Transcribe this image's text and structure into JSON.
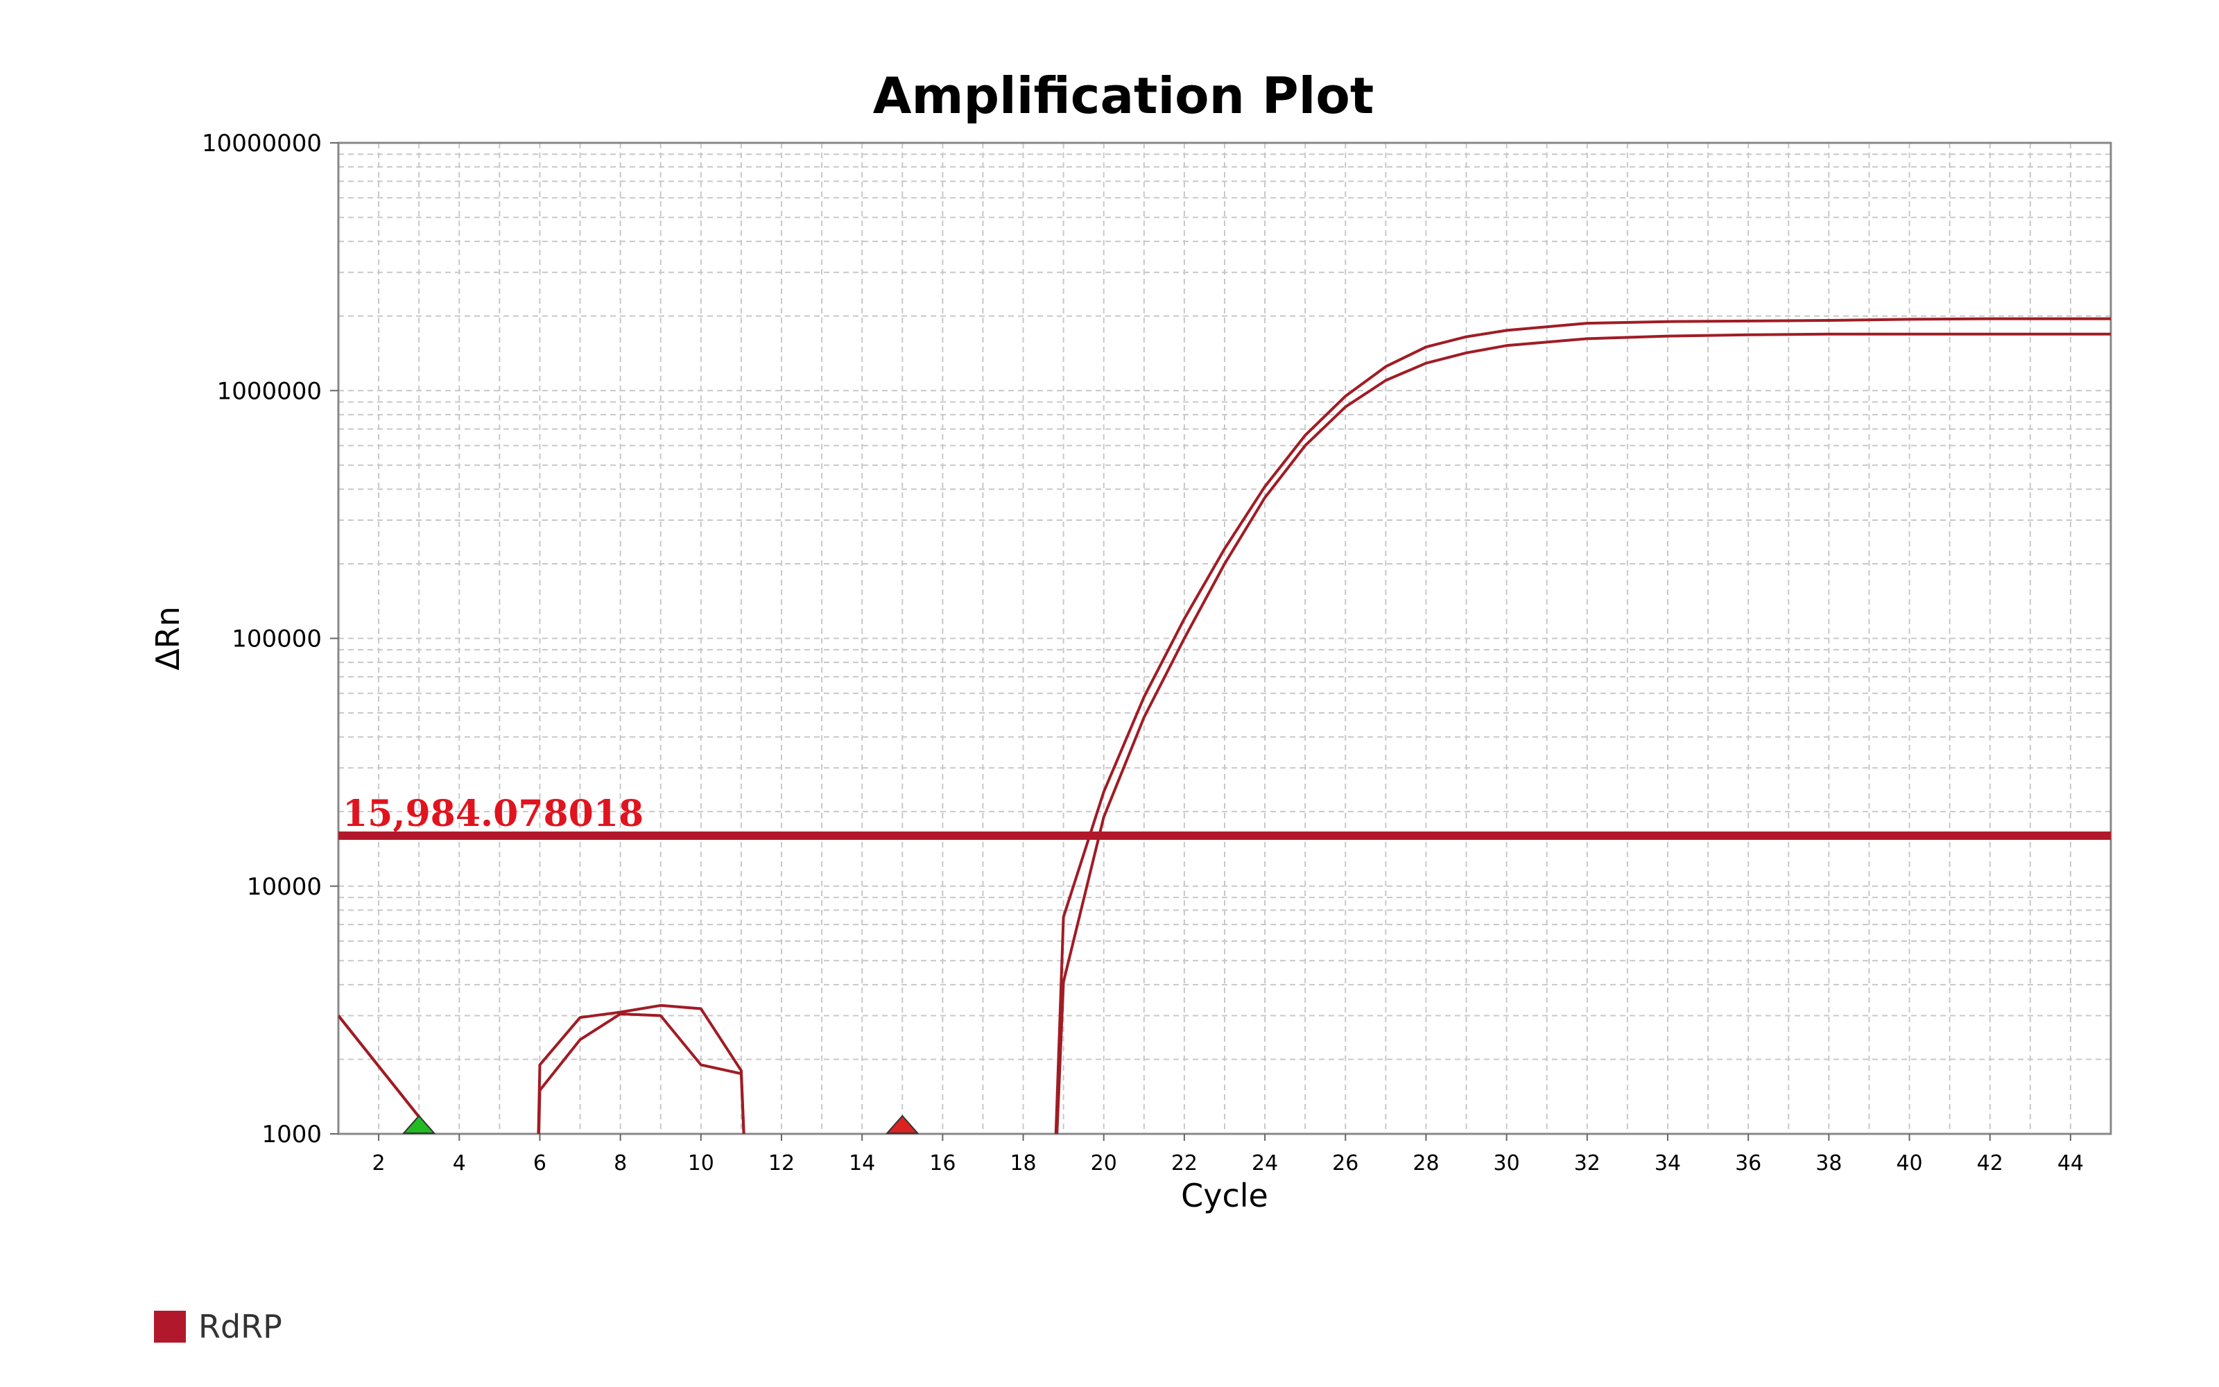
{
  "chart_data": {
    "type": "line",
    "title": "Amplification Plot",
    "xlabel": "Cycle",
    "ylabel": "ΔRn",
    "xlim": [
      1,
      45
    ],
    "ylim": [
      1000,
      10000000
    ],
    "yscale": "log",
    "grid": true,
    "x_ticks": [
      "2",
      "4",
      "6",
      "8",
      "10",
      "12",
      "14",
      "16",
      "18",
      "20",
      "22",
      "24",
      "26",
      "28",
      "30",
      "32",
      "34",
      "36",
      "38",
      "40",
      "42",
      "44"
    ],
    "y_ticks": [
      "1000",
      "10000",
      "100000",
      "1000000",
      "10000000"
    ],
    "threshold": {
      "value": 15984.078018,
      "label": "15,984.078018",
      "color": "#b2182b"
    },
    "baseline_markers": [
      {
        "name": "baseline-start",
        "x": 3,
        "color": "#22bb22"
      },
      {
        "name": "baseline-end",
        "x": 15,
        "color": "#dd2222"
      }
    ],
    "legend_position": "bottom-left",
    "series": [
      {
        "name": "RdRP",
        "color": "#a01c24",
        "x": [
          1,
          5.9,
          6,
          7,
          8,
          9,
          10,
          11,
          11.2,
          18.7,
          19,
          20,
          21,
          22,
          23,
          24,
          25,
          26,
          27,
          28,
          29,
          30,
          32,
          34,
          36,
          38,
          40,
          42,
          45
        ],
        "values": [
          3000,
          300,
          1900,
          2950,
          3100,
          3300,
          3200,
          1800,
          300,
          300,
          7500,
          24000,
          58000,
          120000,
          230000,
          410000,
          660000,
          950000,
          1250000,
          1500000,
          1650000,
          1750000,
          1870000,
          1900000,
          1910000,
          1920000,
          1940000,
          1950000,
          1950000
        ]
      },
      {
        "name": "RdRP",
        "color": "#a01c24",
        "x": [
          1,
          5.9,
          6,
          7,
          8,
          9,
          10,
          11,
          11.2,
          18.7,
          19,
          20,
          21,
          22,
          23,
          24,
          25,
          26,
          27,
          28,
          29,
          30,
          32,
          34,
          36,
          38,
          40,
          42,
          45
        ],
        "values": [
          3000,
          300,
          1500,
          2400,
          3050,
          3000,
          1900,
          1750,
          300,
          300,
          4100,
          19000,
          48000,
          100000,
          200000,
          370000,
          600000,
          860000,
          1100000,
          1290000,
          1420000,
          1520000,
          1620000,
          1660000,
          1680000,
          1690000,
          1690000,
          1690000,
          1690000
        ]
      }
    ],
    "legend": [
      {
        "label": "RdRP",
        "color": "#b2182b"
      }
    ]
  }
}
